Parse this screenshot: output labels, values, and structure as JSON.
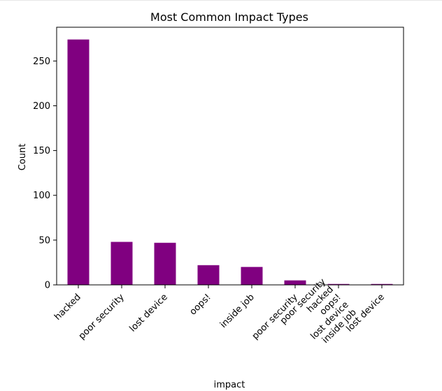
{
  "chart_data": {
    "type": "bar",
    "title": "Most Common Impact Types",
    "xlabel": "impact",
    "ylabel": "Count",
    "categories": [
      "hacked",
      "poor security",
      "lost device",
      "oops!",
      "inside job",
      "poor security",
      "poor security\nhacked\noops!\nlost device\ninside job",
      "lost device"
    ],
    "values": [
      274,
      48,
      47,
      22,
      20,
      5,
      1,
      1
    ],
    "ylim": [
      0,
      287.7
    ],
    "yticks": [
      0,
      50,
      100,
      150,
      200,
      250
    ],
    "bar_color": "#800080",
    "grid": false,
    "legend": "none"
  }
}
